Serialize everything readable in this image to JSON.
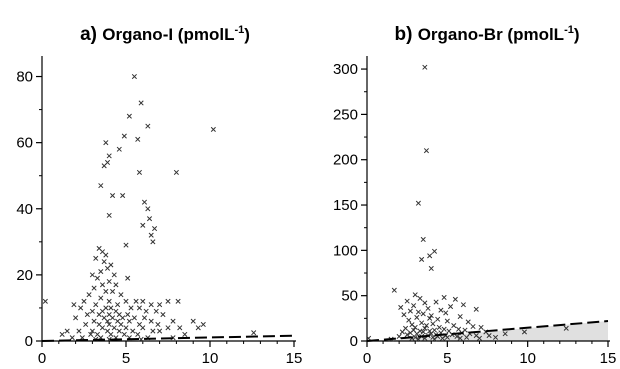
{
  "chart_data": [
    {
      "id": "a",
      "type": "scatter",
      "panel_letter": "a)",
      "title": "Organo-I (pmolL",
      "title_sup": "-1",
      "title_close": ")",
      "xlim": [
        0,
        15
      ],
      "ylim": [
        0,
        85
      ],
      "xticks": [
        0,
        5,
        10,
        15
      ],
      "yticks": [
        0,
        20,
        40,
        60,
        80
      ],
      "marker": "x",
      "colors": {
        "points": "#333333",
        "axis": "#000000",
        "threshold_line": "#000000"
      },
      "threshold_line": {
        "style": "dashed",
        "x": [
          0,
          15
        ],
        "y": [
          0,
          1.6
        ]
      },
      "shaded_region": null,
      "points": [
        [
          0.2,
          12
        ],
        [
          5.5,
          80
        ],
        [
          5.9,
          72
        ],
        [
          5.2,
          68
        ],
        [
          6.3,
          65
        ],
        [
          4.9,
          62
        ],
        [
          5.7,
          61
        ],
        [
          10.2,
          64
        ],
        [
          3.8,
          60
        ],
        [
          4.6,
          58
        ],
        [
          4.0,
          56
        ],
        [
          3.9,
          54
        ],
        [
          3.7,
          53
        ],
        [
          5.8,
          51
        ],
        [
          8.0,
          51
        ],
        [
          3.5,
          47
        ],
        [
          4.2,
          44
        ],
        [
          4.8,
          44
        ],
        [
          6.1,
          42
        ],
        [
          6.3,
          40
        ],
        [
          4.0,
          38
        ],
        [
          6.4,
          37
        ],
        [
          6.0,
          35
        ],
        [
          6.7,
          34
        ],
        [
          6.5,
          32
        ],
        [
          6.6,
          30
        ],
        [
          5.0,
          29
        ],
        [
          3.4,
          28
        ],
        [
          3.6,
          27
        ],
        [
          3.8,
          26
        ],
        [
          3.2,
          25
        ],
        [
          3.7,
          24
        ],
        [
          4.1,
          23
        ],
        [
          3.9,
          22
        ],
        [
          3.5,
          21
        ],
        [
          3.0,
          20
        ],
        [
          4.3,
          20
        ],
        [
          3.3,
          19
        ],
        [
          5.1,
          19
        ],
        [
          4.0,
          18
        ],
        [
          3.6,
          17
        ],
        [
          4.4,
          17
        ],
        [
          3.1,
          16
        ],
        [
          3.8,
          15
        ],
        [
          4.2,
          15
        ],
        [
          4.7,
          14
        ],
        [
          2.8,
          14
        ],
        [
          3.5,
          13
        ],
        [
          4.0,
          12
        ],
        [
          5.0,
          12
        ],
        [
          5.6,
          12
        ],
        [
          6.0,
          12
        ],
        [
          2.5,
          12
        ],
        [
          1.9,
          11
        ],
        [
          4.5,
          11
        ],
        [
          3.2,
          11
        ],
        [
          6.5,
          11
        ],
        [
          7.0,
          11
        ],
        [
          7.5,
          12
        ],
        [
          8.1,
          12
        ],
        [
          3.8,
          10
        ],
        [
          4.1,
          10
        ],
        [
          5.3,
          10
        ],
        [
          5.8,
          10
        ],
        [
          2.3,
          10
        ],
        [
          3.0,
          9
        ],
        [
          3.6,
          9
        ],
        [
          4.4,
          9
        ],
        [
          6.2,
          9
        ],
        [
          6.8,
          9
        ],
        [
          4.0,
          8
        ],
        [
          4.6,
          8
        ],
        [
          5.1,
          8
        ],
        [
          2.7,
          8
        ],
        [
          3.4,
          8
        ],
        [
          7.2,
          8
        ],
        [
          3.7,
          7
        ],
        [
          4.2,
          7
        ],
        [
          4.8,
          7
        ],
        [
          5.5,
          7
        ],
        [
          6.1,
          7
        ],
        [
          2.0,
          7
        ],
        [
          3.1,
          6
        ],
        [
          3.9,
          6
        ],
        [
          4.5,
          6
        ],
        [
          5.2,
          6
        ],
        [
          6.5,
          6
        ],
        [
          7.8,
          6
        ],
        [
          9.0,
          6
        ],
        [
          9.6,
          5
        ],
        [
          4.0,
          5
        ],
        [
          3.4,
          5
        ],
        [
          4.7,
          5
        ],
        [
          5.8,
          5
        ],
        [
          6.9,
          5
        ],
        [
          2.6,
          5
        ],
        [
          3.6,
          4
        ],
        [
          4.3,
          4
        ],
        [
          5.0,
          4
        ],
        [
          6.0,
          4
        ],
        [
          7.5,
          4
        ],
        [
          8.2,
          4
        ],
        [
          9.3,
          4
        ],
        [
          3.0,
          3
        ],
        [
          3.9,
          3
        ],
        [
          4.6,
          3
        ],
        [
          5.4,
          3
        ],
        [
          6.6,
          3
        ],
        [
          1.5,
          3
        ],
        [
          2.2,
          3
        ],
        [
          7.0,
          3
        ],
        [
          3.3,
          2
        ],
        [
          4.1,
          2
        ],
        [
          4.9,
          2
        ],
        [
          5.7,
          2
        ],
        [
          8.5,
          2
        ],
        [
          12.6,
          2.5
        ],
        [
          1.2,
          2
        ],
        [
          2.9,
          2
        ],
        [
          3.5,
          1
        ],
        [
          4.4,
          1
        ],
        [
          5.2,
          1
        ],
        [
          6.3,
          1
        ],
        [
          2.4,
          1
        ],
        [
          1.8,
          1
        ],
        [
          7.8,
          1
        ],
        [
          4.0,
          0.5
        ],
        [
          3.2,
          0.5
        ],
        [
          5.9,
          0.5
        ]
      ]
    },
    {
      "id": "b",
      "type": "scatter",
      "panel_letter": "b)",
      "title": "Organo-Br (pmolL",
      "title_sup": "-1",
      "title_close": ")",
      "xlim": [
        0,
        15
      ],
      "ylim": [
        0,
        310
      ],
      "xticks": [
        0,
        5,
        10,
        15
      ],
      "yticks": [
        0,
        50,
        100,
        150,
        200,
        250,
        300
      ],
      "marker": "x",
      "colors": {
        "points": "#333333",
        "axis": "#000000",
        "threshold_line": "#000000",
        "shaded_region": "#e0e0e0"
      },
      "threshold_line": {
        "style": "dashed",
        "x": [
          0,
          15
        ],
        "y": [
          0,
          22
        ]
      },
      "shaded_region": {
        "x": [
          1,
          15
        ],
        "y_lower": [
          0,
          0
        ],
        "y_upper": [
          0,
          22
        ]
      },
      "points": [
        [
          3.6,
          302
        ],
        [
          3.7,
          210
        ],
        [
          3.2,
          152
        ],
        [
          3.5,
          112
        ],
        [
          4.2,
          99
        ],
        [
          3.9,
          94
        ],
        [
          3.4,
          90
        ],
        [
          4.0,
          80
        ],
        [
          1.7,
          56
        ],
        [
          3.0,
          51
        ],
        [
          4.8,
          48
        ],
        [
          3.3,
          47
        ],
        [
          5.5,
          46
        ],
        [
          2.5,
          44
        ],
        [
          4.3,
          43
        ],
        [
          3.6,
          42
        ],
        [
          6.0,
          40
        ],
        [
          2.9,
          39
        ],
        [
          5.2,
          38
        ],
        [
          2.1,
          37
        ],
        [
          3.8,
          36
        ],
        [
          6.8,
          35
        ],
        [
          4.6,
          34
        ],
        [
          2.7,
          33
        ],
        [
          3.2,
          32
        ],
        [
          4.9,
          31
        ],
        [
          3.5,
          30
        ],
        [
          2.3,
          29
        ],
        [
          4.0,
          28
        ],
        [
          5.8,
          27
        ],
        [
          3.1,
          26
        ],
        [
          3.9,
          25
        ],
        [
          4.4,
          24
        ],
        [
          2.6,
          23
        ],
        [
          5.0,
          22
        ],
        [
          6.3,
          21
        ],
        [
          3.4,
          20
        ],
        [
          4.1,
          19
        ],
        [
          2.8,
          18
        ],
        [
          3.7,
          17
        ],
        [
          5.4,
          17
        ],
        [
          6.6,
          16
        ],
        [
          3.0,
          15
        ],
        [
          4.5,
          15
        ],
        [
          7.1,
          15
        ],
        [
          2.4,
          14
        ],
        [
          3.6,
          14
        ],
        [
          4.8,
          13
        ],
        [
          5.7,
          13
        ],
        [
          2.9,
          12
        ],
        [
          4.2,
          12
        ],
        [
          6.1,
          12
        ],
        [
          3.3,
          11
        ],
        [
          3.9,
          11
        ],
        [
          5.1,
          11
        ],
        [
          7.4,
          10
        ],
        [
          2.2,
          10
        ],
        [
          3.5,
          10
        ],
        [
          4.6,
          9
        ],
        [
          5.9,
          9
        ],
        [
          2.7,
          9
        ],
        [
          4.0,
          8
        ],
        [
          6.4,
          8
        ],
        [
          3.1,
          8
        ],
        [
          4.3,
          7
        ],
        [
          5.3,
          7
        ],
        [
          2.5,
          7
        ],
        [
          3.8,
          6
        ],
        [
          4.9,
          6
        ],
        [
          6.8,
          6
        ],
        [
          7.6,
          6
        ],
        [
          3.4,
          5
        ],
        [
          4.4,
          5
        ],
        [
          5.6,
          5
        ],
        [
          2.0,
          5
        ],
        [
          3.0,
          4
        ],
        [
          4.1,
          4
        ],
        [
          5.0,
          4
        ],
        [
          6.2,
          4
        ],
        [
          8.0,
          4
        ],
        [
          3.6,
          3
        ],
        [
          4.7,
          3
        ],
        [
          2.8,
          3
        ],
        [
          5.8,
          3
        ],
        [
          7.0,
          3
        ],
        [
          3.2,
          2
        ],
        [
          4.2,
          2
        ],
        [
          1.5,
          2
        ],
        [
          8.6,
          8
        ],
        [
          9.8,
          10
        ],
        [
          12.4,
          14
        ],
        [
          0.1,
          3
        ]
      ]
    }
  ]
}
